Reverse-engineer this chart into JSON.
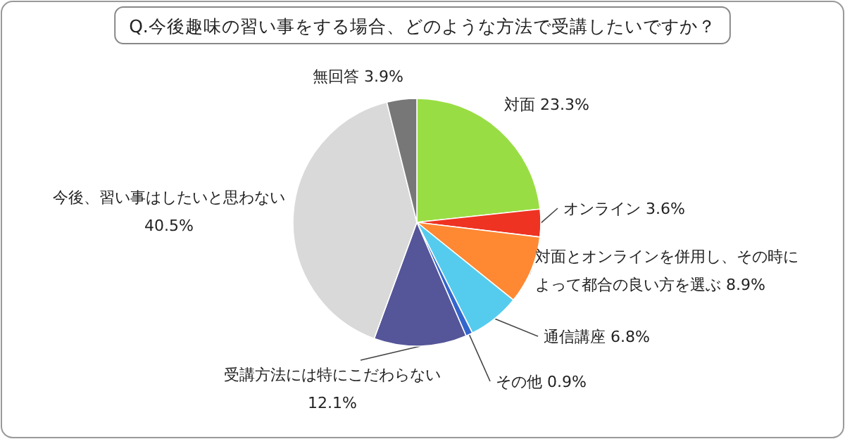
{
  "chart_data": {
    "type": "pie",
    "title": "Q.今後趣味の習い事をする場合、どのような方法で受講したいですか？",
    "categories": [
      "対面",
      "オンライン",
      "対面とオンラインを併用し、その時によって都合の良い方を選ぶ",
      "通信講座",
      "その他",
      "受講方法には特にこだわらない",
      "今後、習い事はしたいと思わない",
      "無回答"
    ],
    "values": [
      23.3,
      3.6,
      8.9,
      6.8,
      0.9,
      12.1,
      40.5,
      3.9
    ],
    "colors": [
      "#99dd44",
      "#ee3322",
      "#ff8833",
      "#55ccee",
      "#3366cc",
      "#555599",
      "#d9d9d9",
      "#777777"
    ],
    "value_labels": [
      "23.3%",
      "3.6%",
      "8.9%",
      "6.8%",
      "0.9%",
      "12.1%",
      "40.5%",
      "3.9%"
    ]
  }
}
